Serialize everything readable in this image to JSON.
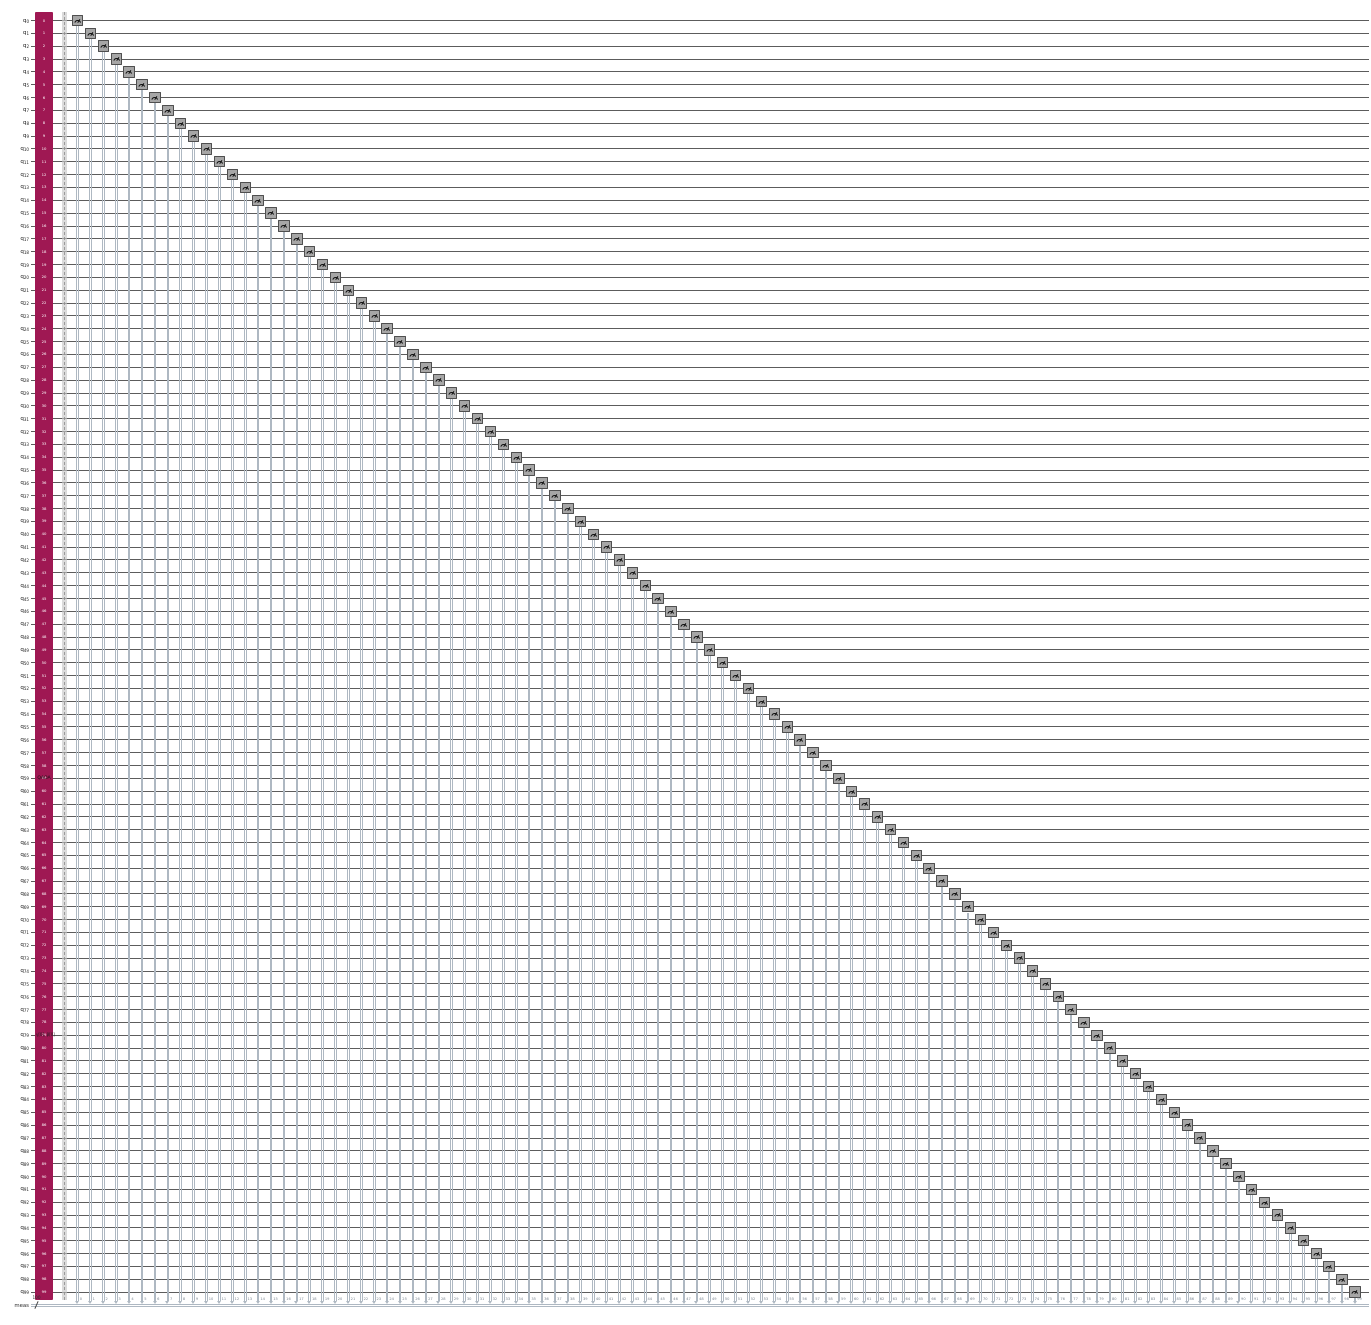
{
  "circuit": {
    "type": "quantum-circuit-qiskit-mpl",
    "qubit_prefix": "q",
    "indices": [
      0,
      1,
      2,
      3,
      4,
      5,
      6,
      7,
      8,
      9,
      10,
      11,
      12,
      13,
      14,
      15,
      16,
      17,
      18,
      19,
      20,
      21,
      22,
      23,
      24,
      25,
      26,
      27,
      28,
      29,
      30,
      31,
      32,
      33,
      34,
      35,
      36,
      37,
      38,
      39,
      40,
      41,
      42,
      43,
      44,
      45,
      46,
      47,
      48,
      49,
      50,
      51,
      52,
      53,
      54,
      55,
      56,
      57,
      58,
      59,
      60,
      61,
      62,
      63,
      64,
      65,
      66,
      67,
      68,
      69,
      70,
      71,
      72,
      73,
      74,
      75,
      76,
      77,
      78,
      79,
      80,
      81,
      82,
      83,
      84,
      85,
      86,
      87,
      88,
      89,
      90,
      91,
      92,
      93,
      94,
      95,
      96,
      97,
      98,
      99
    ],
    "ansatz": {
      "label": "QAOA",
      "params_label": "γ[0], β[0]"
    },
    "classical": {
      "name": "meas",
      "size_label": "100"
    },
    "colors": {
      "background": "#ffffff",
      "ansatz_fill": "#9F1853",
      "measure_fill": "#A6A6A6",
      "measure_border": "#4F4F4F",
      "measure_glyph": "#101010",
      "quantum_wire": "#5C5C5C",
      "classical_wire": "#AEB8C2",
      "barrier_fill": "#C8C8C8",
      "label_text": "#1A1A1A",
      "bit_label_text": "#7A8591"
    }
  }
}
